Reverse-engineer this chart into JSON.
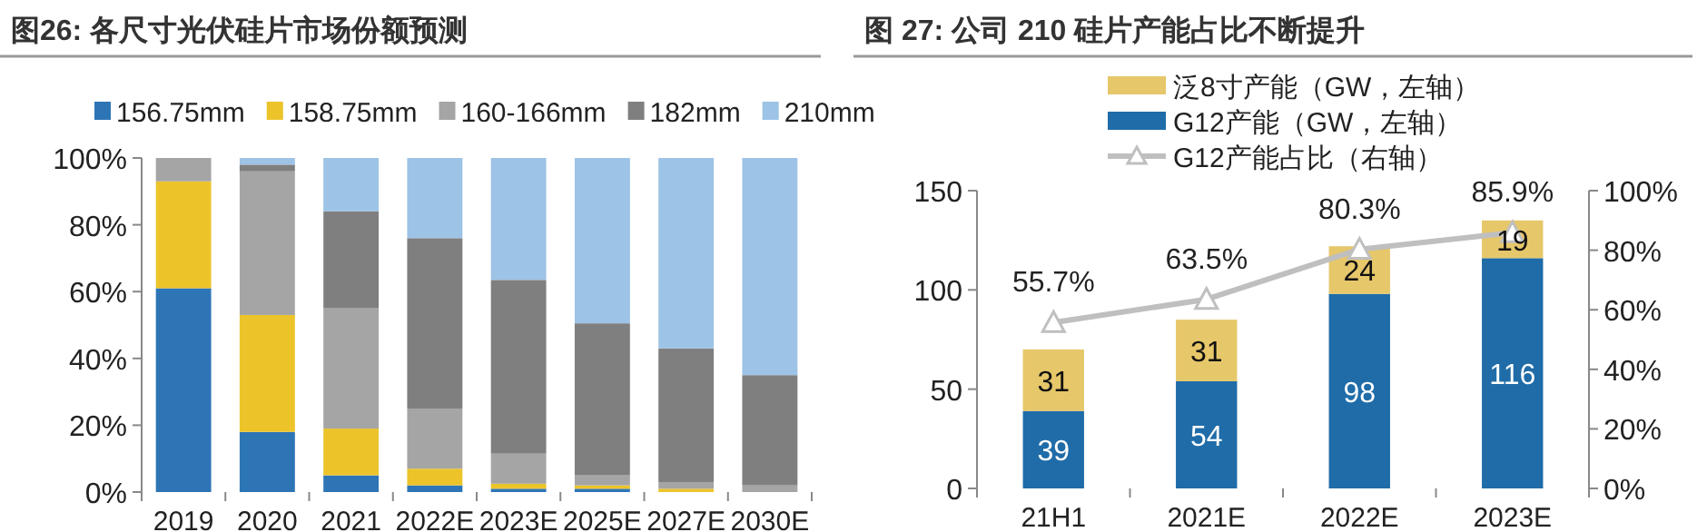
{
  "chart_data": [
    {
      "type": "bar",
      "title": "图26:  各尺寸光伏硅片市场份额预测",
      "stacked": true,
      "legend": "top",
      "categories": [
        "2019",
        "2020",
        "2021",
        "2022E",
        "2023E",
        "2025E",
        "2027E",
        "2030E"
      ],
      "ylim": [
        0,
        100
      ],
      "yticks": [
        {
          "value": 0,
          "label": "0%"
        },
        {
          "value": 20,
          "label": "20%"
        },
        {
          "value": 40,
          "label": "40%"
        },
        {
          "value": 60,
          "label": "60%"
        },
        {
          "value": 80,
          "label": "80%"
        },
        {
          "value": 100,
          "label": "100%"
        }
      ],
      "series": [
        {
          "name": "156.75mm",
          "color": "#2e75b6",
          "values": [
            61,
            18,
            5,
            2,
            1,
            1,
            0,
            0
          ]
        },
        {
          "name": "158.75mm",
          "color": "#ecc42a",
          "values": [
            32,
            35,
            14,
            5,
            1.5,
            1,
            1,
            0
          ]
        },
        {
          "name": "160-166mm",
          "color": "#a5a5a5",
          "values": [
            7,
            43,
            36,
            18,
            9,
            3,
            2,
            2
          ]
        },
        {
          "name": "182mm",
          "color": "#7f7f7f",
          "values": [
            0,
            2,
            29,
            51,
            52,
            45.5,
            40,
            33
          ]
        },
        {
          "name": "210mm",
          "color": "#9dc3e6",
          "values": [
            0,
            2,
            16,
            24,
            36.5,
            49.5,
            57,
            65
          ]
        }
      ]
    },
    {
      "type": "bar",
      "title": "图 27:  公司 210 硅片产能占比不断提升",
      "stacked": true,
      "legend": "top",
      "data_labels": true,
      "categories": [
        "21H1",
        "2021E",
        "2022E",
        "2023E"
      ],
      "ylim": [
        0,
        150
      ],
      "yticks": [
        0,
        50,
        100,
        150
      ],
      "y2lim": [
        0,
        100
      ],
      "y2ticks": [
        {
          "value": 0,
          "label": "0%"
        },
        {
          "value": 20,
          "label": "20%"
        },
        {
          "value": 40,
          "label": "40%"
        },
        {
          "value": 60,
          "label": "60%"
        },
        {
          "value": 80,
          "label": "80%"
        },
        {
          "value": 100,
          "label": "100%"
        }
      ],
      "series": [
        {
          "name": "G12产能（GW，左轴）",
          "color": "#1f6ca8",
          "values": [
            39,
            54,
            98,
            116
          ]
        },
        {
          "name": "泛8寸产能（GW，左轴）",
          "color": "#e6c76a",
          "values": [
            31,
            31,
            24,
            19
          ]
        },
        {
          "name": "G12产能占比（右轴）",
          "type": "line",
          "axis": "y2",
          "color": "#bfbfbf",
          "marker": "triangle",
          "line_style": "solid",
          "values": [
            55.7,
            63.5,
            80.3,
            85.9
          ],
          "value_labels": [
            "55.7%",
            "63.5%",
            "80.3%",
            "85.9%"
          ]
        }
      ]
    }
  ]
}
